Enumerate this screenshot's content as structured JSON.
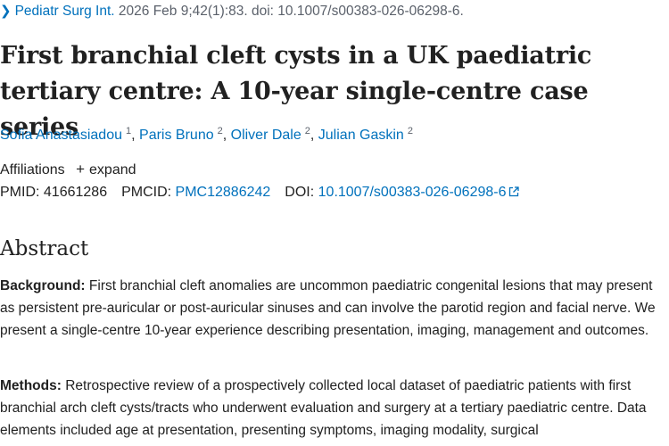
{
  "citation": {
    "journal": "Pediatr Surg Int.",
    "details": "2026 Feb 9;42(1):83. doi: 10.1007/s00383-026-06298-6."
  },
  "article": {
    "title": "First branchial cleft cysts in a UK paediatric tertiary centre: A 10-year single-centre case series"
  },
  "authors": [
    {
      "name": "Sofia Anastasiadou",
      "aff": "1"
    },
    {
      "name": "Paris Bruno",
      "aff": "2"
    },
    {
      "name": "Oliver Dale",
      "aff": "2"
    },
    {
      "name": "Julian Gaskin",
      "aff": "2"
    }
  ],
  "affiliations": {
    "label": "Affiliations",
    "toggle": "expand"
  },
  "identifiers": {
    "pmid_label": "PMID:",
    "pmid": "41661286",
    "pmcid_label": "PMCID:",
    "pmcid": "PMC12886242",
    "doi_label": "DOI:",
    "doi": "10.1007/s00383-026-06298-6"
  },
  "abstract": {
    "heading": "Abstract",
    "background_label": "Background:",
    "background_text": "First branchial cleft anomalies are uncommon paediatric congenital lesions that may present as persistent pre-auricular or post-auricular sinuses and can involve the parotid region and facial nerve. We present a single-centre 10-year experience describing presentation, imaging, management and outcomes.",
    "methods_label": "Methods:",
    "methods_text": "Retrospective review of a prospectively collected local dataset of paediatric patients with first branchial arch cleft cysts/tracts who underwent evaluation and surgery at a tertiary paediatric centre. Data elements included age at presentation, presenting symptoms, imaging modality, surgical"
  },
  "colors": {
    "link": "#0071bc",
    "text": "#212121",
    "muted": "#5b616b"
  }
}
